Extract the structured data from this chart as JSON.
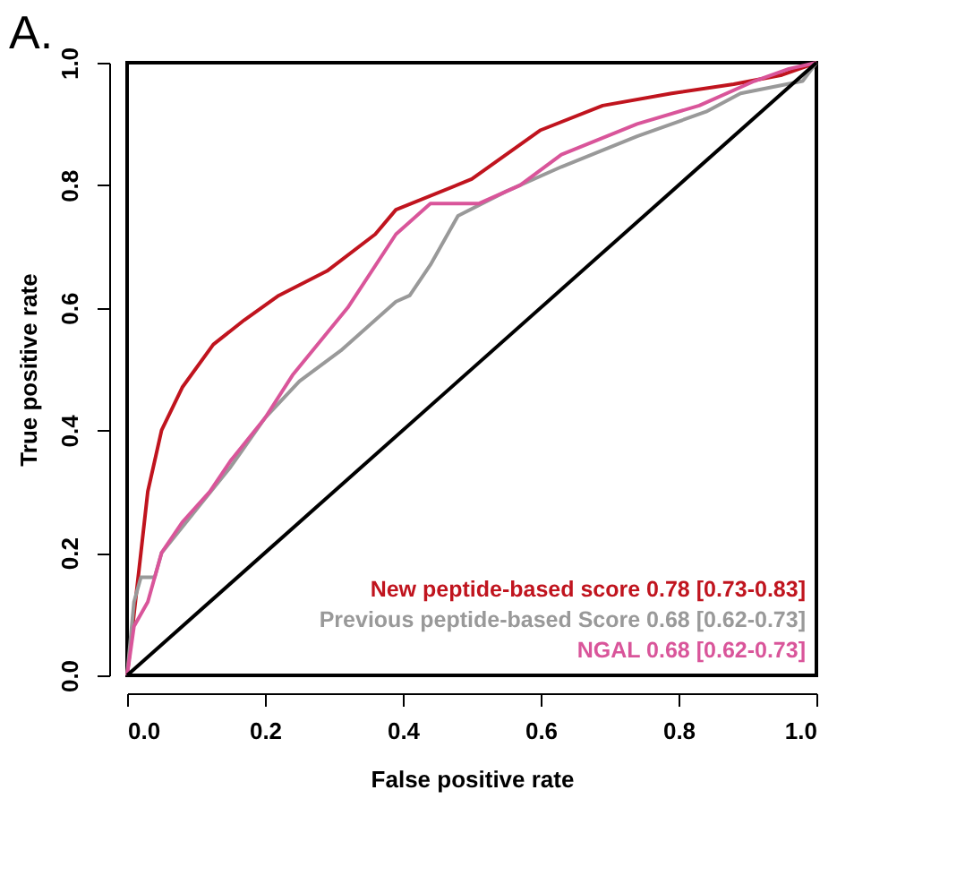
{
  "chart_data": {
    "type": "line",
    "title": "A.",
    "xlabel": "False positive rate",
    "ylabel": "True positive rate",
    "xlim": [
      0,
      1
    ],
    "ylim": [
      0,
      1
    ],
    "xticks": [
      {
        "value": 0,
        "label": "0.0"
      },
      0.2,
      0.4,
      0.6,
      0.8,
      {
        "value": 1,
        "label": "1.0"
      }
    ],
    "yticks": [
      {
        "value": 0,
        "label": "0.0"
      },
      0.2,
      0.4,
      0.6,
      0.8,
      {
        "value": 1,
        "label": "1.0"
      }
    ],
    "grid": false,
    "legend": "bottom right",
    "marker": "none",
    "line_style": "solid",
    "series": [
      {
        "name": "New peptide-based score 0.78 [0.73-0.83]",
        "color": "#c0141e",
        "x": [
          0,
          0.01,
          0.02,
          0.03,
          0.05,
          0.08,
          0.125,
          0.17,
          0.22,
          0.29,
          0.36,
          0.39,
          0.5,
          0.6,
          0.69,
          0.79,
          0.88,
          0.95,
          1
        ],
        "values": [
          0,
          0.1,
          0.2,
          0.3,
          0.4,
          0.47,
          0.54,
          0.58,
          0.62,
          0.66,
          0.72,
          0.76,
          0.81,
          0.89,
          0.93,
          0.95,
          0.965,
          0.98,
          1
        ]
      },
      {
        "name": "Previous peptide-based Score 0.68 [0.62-0.73]",
        "color": "#999999",
        "x": [
          0,
          0.01,
          0.02,
          0.04,
          0.05,
          0.1,
          0.15,
          0.2,
          0.25,
          0.31,
          0.39,
          0.41,
          0.44,
          0.48,
          0.55,
          0.63,
          0.74,
          0.84,
          0.89,
          0.98,
          1
        ],
        "values": [
          0,
          0.12,
          0.16,
          0.16,
          0.2,
          0.27,
          0.34,
          0.42,
          0.48,
          0.53,
          0.61,
          0.62,
          0.67,
          0.75,
          0.79,
          0.83,
          0.88,
          0.92,
          0.95,
          0.97,
          1
        ]
      },
      {
        "name": "NGAL 0.68 [0.62-0.73]",
        "color": "#d9559a",
        "x": [
          0,
          0.01,
          0.03,
          0.05,
          0.08,
          0.12,
          0.15,
          0.2,
          0.24,
          0.32,
          0.39,
          0.44,
          0.51,
          0.57,
          0.63,
          0.74,
          0.83,
          0.91,
          0.96,
          1
        ],
        "values": [
          0,
          0.08,
          0.12,
          0.2,
          0.25,
          0.3,
          0.35,
          0.42,
          0.49,
          0.6,
          0.72,
          0.77,
          0.77,
          0.8,
          0.85,
          0.9,
          0.93,
          0.97,
          0.99,
          1
        ]
      },
      {
        "color": "#000000",
        "x": [
          0,
          1
        ],
        "values": [
          0,
          1
        ]
      }
    ]
  }
}
